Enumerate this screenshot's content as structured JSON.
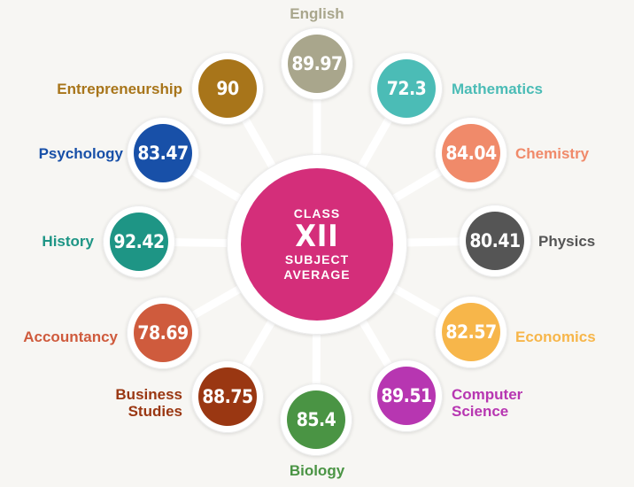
{
  "center": {
    "line1": "CLASS",
    "line2": "XII",
    "line3": "SUBJECT",
    "line4": "AVERAGE",
    "color": "#d42e7a"
  },
  "subjects": [
    {
      "id": "english",
      "label_lines": [
        "English"
      ],
      "value": "89.97",
      "color": "#a9a68c"
    },
    {
      "id": "mathematics",
      "label_lines": [
        "Mathematics"
      ],
      "value": "72.3",
      "color": "#4bbcb6"
    },
    {
      "id": "chemistry",
      "label_lines": [
        "Chemistry"
      ],
      "value": "84.04",
      "color": "#f08a6a"
    },
    {
      "id": "physics",
      "label_lines": [
        "Physics"
      ],
      "value": "80.41",
      "color": "#555555"
    },
    {
      "id": "economics",
      "label_lines": [
        "Economics"
      ],
      "value": "82.57",
      "color": "#f7b64a"
    },
    {
      "id": "computer-science",
      "label_lines": [
        "Computer",
        "Science"
      ],
      "value": "89.51",
      "color": "#b736b1"
    },
    {
      "id": "biology",
      "label_lines": [
        "Biology"
      ],
      "value": "85.4",
      "color": "#4a9444"
    },
    {
      "id": "business-studies",
      "label_lines": [
        "Business",
        "Studies"
      ],
      "value": "88.75",
      "color": "#9a3712"
    },
    {
      "id": "accountancy",
      "label_lines": [
        "Accountancy"
      ],
      "value": "78.69",
      "color": "#cf5b3d"
    },
    {
      "id": "history",
      "label_lines": [
        "History"
      ],
      "value": "92.42",
      "color": "#1e9585"
    },
    {
      "id": "psychology",
      "label_lines": [
        "Psychology"
      ],
      "value": "83.47",
      "color": "#1850a8"
    },
    {
      "id": "entrepreneurship",
      "label_lines": [
        "Entrepreneurship"
      ],
      "value": "90",
      "color": "#a8751a"
    }
  ]
}
